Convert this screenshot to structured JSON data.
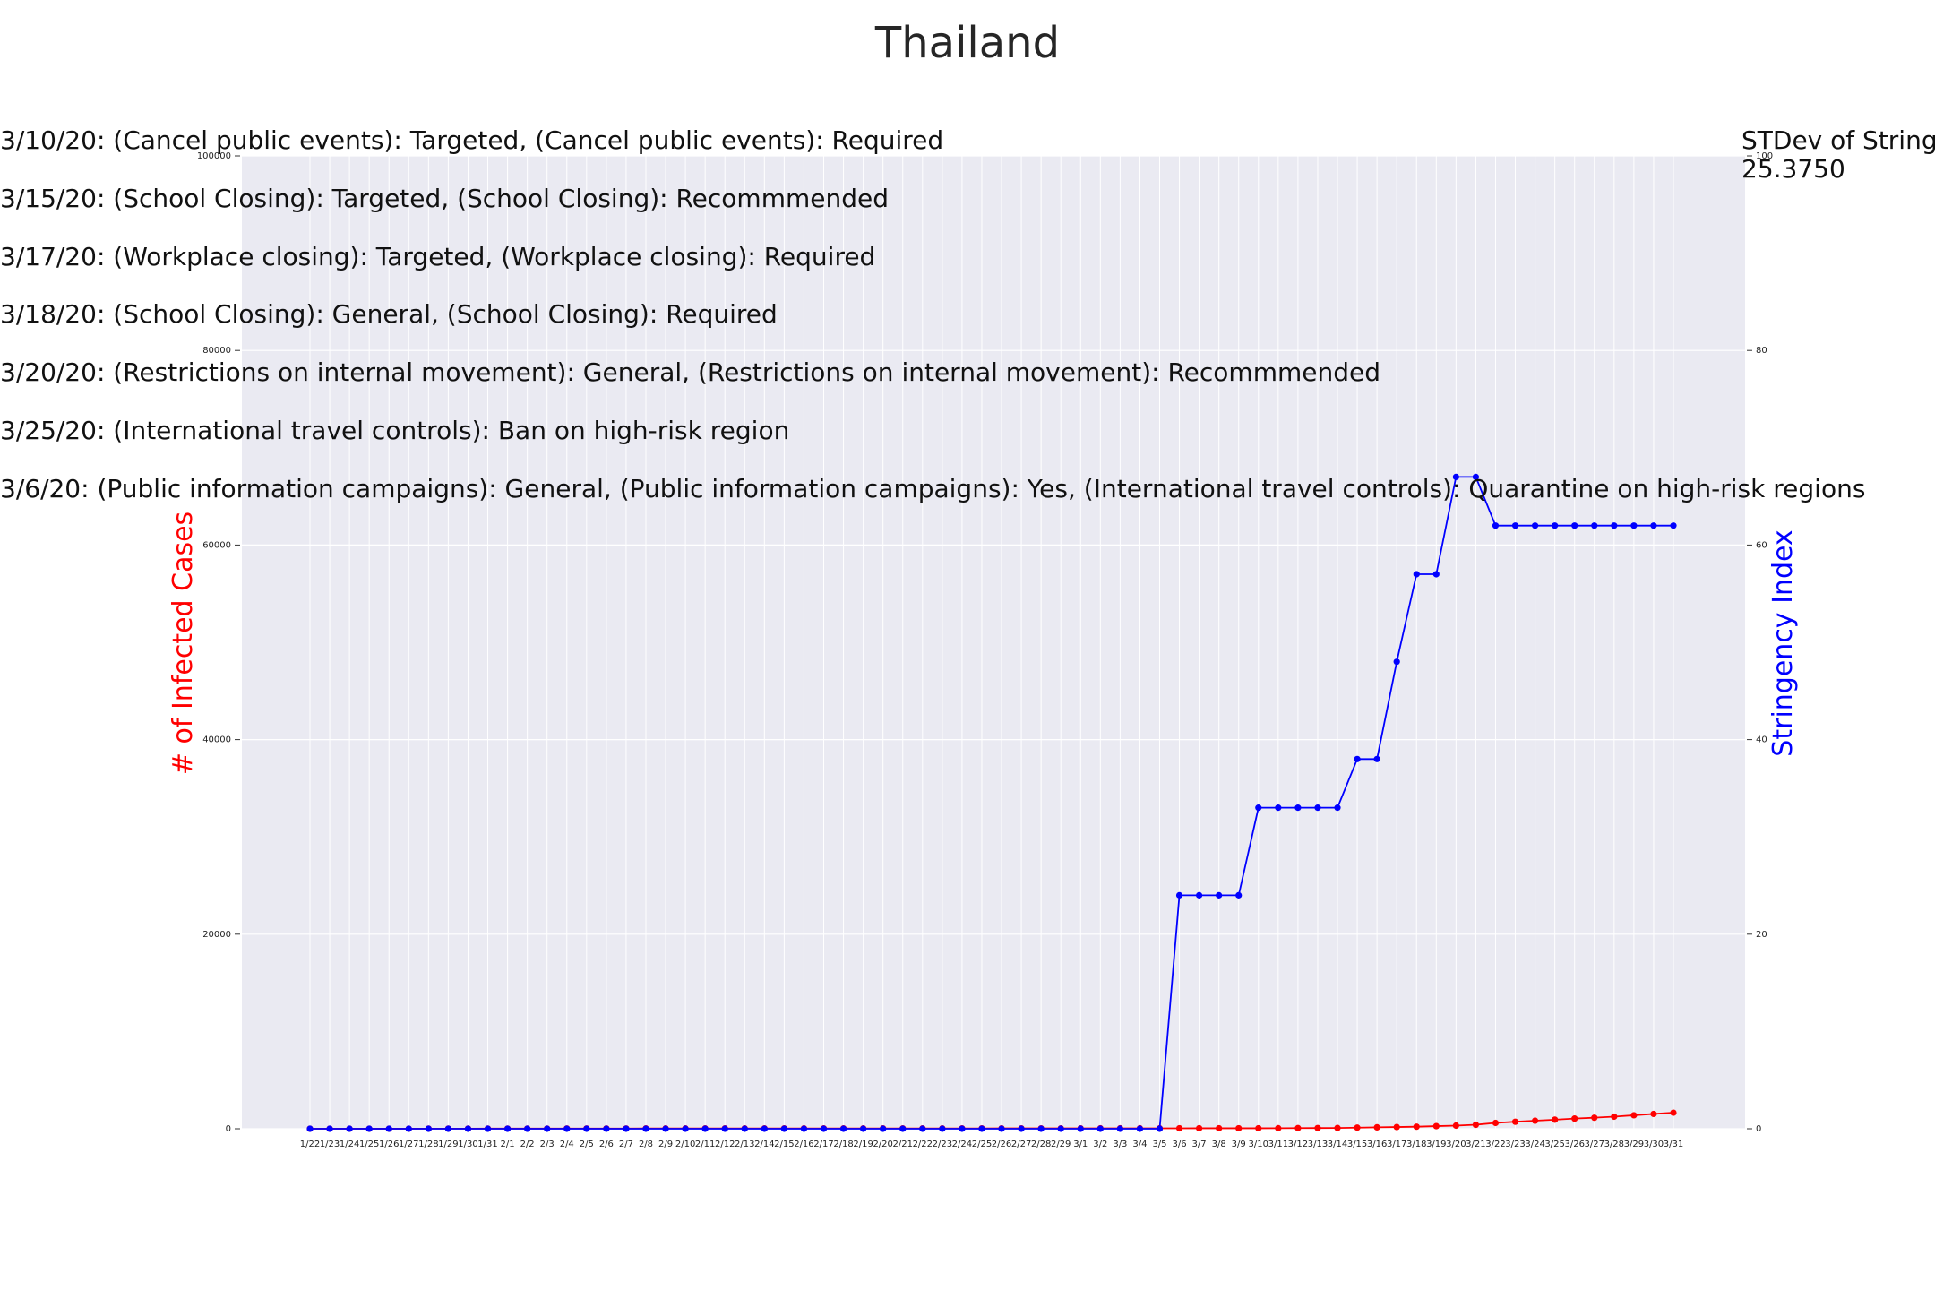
{
  "chart_data": {
    "type": "line",
    "title": "Thailand",
    "xlabel": "",
    "ylabel_left": "# of Infected Cases",
    "ylabel_right": "Stringency Index",
    "ylim_left": [
      0,
      100000
    ],
    "ylim_right": [
      0,
      100
    ],
    "yticks_left": [
      "0",
      "20000",
      "40000",
      "60000",
      "80000",
      "100000"
    ],
    "yticks_right": [
      "0",
      "20",
      "40",
      "60",
      "80",
      "100"
    ],
    "grid": true,
    "categories": [
      "1/22",
      "1/23",
      "1/24",
      "1/25",
      "1/26",
      "1/27",
      "1/28",
      "1/29",
      "1/30",
      "1/31",
      "2/1",
      "2/2",
      "2/3",
      "2/4",
      "2/5",
      "2/6",
      "2/7",
      "2/8",
      "2/9",
      "2/10",
      "2/11",
      "2/12",
      "2/13",
      "2/14",
      "2/15",
      "2/16",
      "2/17",
      "2/18",
      "2/19",
      "2/20",
      "2/21",
      "2/22",
      "2/23",
      "2/24",
      "2/25",
      "2/26",
      "2/27",
      "2/28",
      "2/29",
      "3/1",
      "3/2",
      "3/3",
      "3/4",
      "3/5",
      "3/6",
      "3/7",
      "3/8",
      "3/9",
      "3/10",
      "3/11",
      "3/12",
      "3/13",
      "3/14",
      "3/15",
      "3/16",
      "3/17",
      "3/18",
      "3/19",
      "3/20",
      "3/21",
      "3/22",
      "3/23",
      "3/24",
      "3/25",
      "3/26",
      "3/27",
      "3/28",
      "3/29",
      "3/30",
      "3/31"
    ],
    "series": [
      {
        "name": "# of Infected Cases",
        "axis": "left",
        "color": "#ff0000",
        "values": [
          4,
          4,
          5,
          7,
          8,
          8,
          14,
          14,
          14,
          19,
          19,
          19,
          19,
          25,
          25,
          25,
          25,
          32,
          32,
          32,
          33,
          33,
          33,
          33,
          34,
          34,
          35,
          35,
          35,
          35,
          35,
          35,
          35,
          35,
          37,
          40,
          40,
          41,
          42,
          42,
          43,
          43,
          43,
          47,
          48,
          50,
          50,
          50,
          53,
          59,
          70,
          75,
          82,
          114,
          147,
          177,
          212,
          272,
          322,
          411,
          599,
          721,
          827,
          934,
          1045,
          1136,
          1245,
          1388,
          1524,
          1651
        ]
      },
      {
        "name": "Stringency Index",
        "axis": "right",
        "color": "#0000ff",
        "values": [
          0,
          0,
          0,
          0,
          0,
          0,
          0,
          0,
          0,
          0,
          0,
          0,
          0,
          0,
          0,
          0,
          0,
          0,
          0,
          0,
          0,
          0,
          0,
          0,
          0,
          0,
          0,
          0,
          0,
          0,
          0,
          0,
          0,
          0,
          0,
          0,
          0,
          0,
          0,
          0,
          0,
          0,
          0,
          0,
          24,
          24,
          24,
          24,
          33,
          33,
          33,
          33,
          33,
          38,
          38,
          48,
          57,
          57,
          67,
          67,
          62,
          62,
          62,
          62,
          62,
          62,
          62,
          62,
          62,
          62
        ]
      }
    ],
    "annotations": [
      "3/10/20: (Cancel public events): Targeted, (Cancel public events): Required",
      "3/15/20: (School Closing): Targeted, (School Closing): Recommmended",
      "3/17/20: (Workplace closing): Targeted, (Workplace closing): Required",
      "3/18/20: (School Closing): General, (School Closing): Required",
      "3/20/20: (Restrictions on internal movement): General, (Restrictions on internal movement): Recommmended",
      "3/25/20: (International travel controls): Ban on high-risk region",
      "3/6/20: (Public information campaigns): General, (Public information campaigns): Yes, (International travel controls): Quarantine on high-risk regions"
    ],
    "stdev_label": "STDev of Stringency Index",
    "stdev_value": "25.3750"
  },
  "colors": {
    "plot_background": "#eaeaf2",
    "grid": "#ffffff",
    "left_axis_label": "#ff0000",
    "right_axis_label": "#0000ff"
  }
}
